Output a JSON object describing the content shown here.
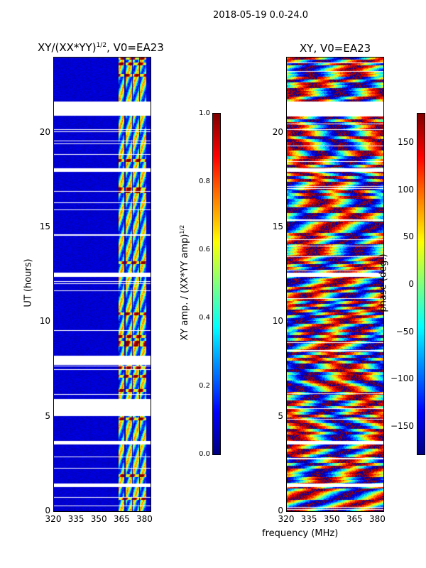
{
  "suptitle": "2018-05-19 0.0-24.0",
  "chart_data": [
    {
      "type": "heatmap",
      "title_main": "XY/(XX*YY)",
      "title_sup": "1/2",
      "title_suffix": ", V0=EA23",
      "xlabel": "frequency (MHz)",
      "ylabel": "UT (hours)",
      "xlim": [
        320,
        384
      ],
      "ylim": [
        0,
        24
      ],
      "xticks": [
        "320",
        "335",
        "350",
        "365",
        "380"
      ],
      "xtick_values": [
        320,
        335,
        350,
        365,
        380
      ],
      "yticks": [
        "0",
        "5",
        "10",
        "15",
        "20"
      ],
      "ytick_values": [
        0,
        5,
        10,
        15,
        20
      ],
      "colormap": "jet",
      "clim": [
        0,
        1
      ],
      "flagged_hours": [
        [
          20.9,
          21.6
        ],
        [
          5.05,
          5.9
        ],
        [
          17.95,
          18.1
        ],
        [
          7.75,
          8.2
        ],
        [
          1.3,
          1.45
        ],
        [
          3.55,
          3.7
        ],
        [
          12.4,
          12.6
        ]
      ],
      "active_band_mhz": [
        362,
        381
      ],
      "background_value": 0.05,
      "colorbar": {
        "label_main": "XY amp. / (XX*YY amp)",
        "label_sup": "1/2",
        "ticks": [
          "0.0",
          "0.2",
          "0.4",
          "0.6",
          "0.8",
          "1.0"
        ],
        "tick_values": [
          0,
          0.2,
          0.4,
          0.6,
          0.8,
          1.0
        ]
      }
    },
    {
      "type": "heatmap",
      "title": "XY, V0=EA23",
      "xlabel": "frequency (MHz)",
      "xlim": [
        320,
        384
      ],
      "ylim": [
        0,
        24
      ],
      "xticks": [
        "320",
        "335",
        "350",
        "365",
        "380"
      ],
      "xtick_values": [
        320,
        335,
        350,
        365,
        380
      ],
      "yticks": [
        "0",
        "5",
        "10",
        "15",
        "20"
      ],
      "ytick_values": [
        0,
        5,
        10,
        15,
        20
      ],
      "colormap": "jet",
      "clim": [
        -180,
        180
      ],
      "flagged_hours": [
        [
          20.9,
          21.6
        ],
        [
          17.95,
          18.1
        ],
        [
          1.3,
          1.45
        ],
        [
          3.55,
          3.7
        ],
        [
          12.4,
          12.6
        ]
      ],
      "colorbar": {
        "label": "phase (deg.)",
        "ticks": [
          "−150",
          "−100",
          "−50",
          "0",
          "50",
          "100",
          "150"
        ],
        "tick_values": [
          -150,
          -100,
          -50,
          0,
          50,
          100,
          150
        ]
      }
    }
  ]
}
